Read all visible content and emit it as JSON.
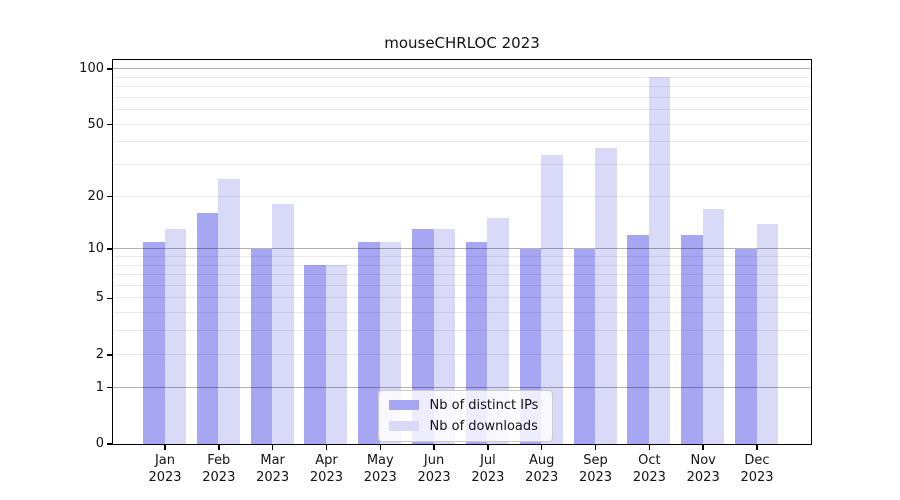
{
  "title": "mouseCHRLOC 2023",
  "chart_data": {
    "type": "bar",
    "title": "mouseCHRLOC 2023",
    "xlabel": "",
    "ylabel": "",
    "scale": "log1p",
    "legend_position": "lower center",
    "grid": "on",
    "categories": [
      "Jan 2023",
      "Feb 2023",
      "Mar 2023",
      "Apr 2023",
      "May 2023",
      "Jun 2023",
      "Jul 2023",
      "Aug 2023",
      "Sep 2023",
      "Oct 2023",
      "Nov 2023",
      "Dec 2023"
    ],
    "series": [
      {
        "name": "Nb of distinct IPs",
        "color": "#a6a6f2",
        "values": [
          11,
          16,
          10,
          8,
          11,
          13,
          11,
          10,
          10,
          12,
          12,
          10
        ]
      },
      {
        "name": "Nb of downloads",
        "color": "#d9d9f8",
        "values": [
          13,
          25,
          18,
          8,
          11,
          13,
          15,
          34,
          37,
          90,
          17,
          14
        ]
      }
    ],
    "yticks": [
      0,
      1,
      2,
      5,
      10,
      20,
      50,
      100
    ],
    "grid_major": [
      1,
      10,
      100
    ],
    "grid_minor": [
      2,
      3,
      4,
      5,
      6,
      7,
      8,
      9,
      20,
      30,
      40,
      50,
      60,
      70,
      80,
      90
    ],
    "ylim": [
      0,
      112
    ]
  }
}
